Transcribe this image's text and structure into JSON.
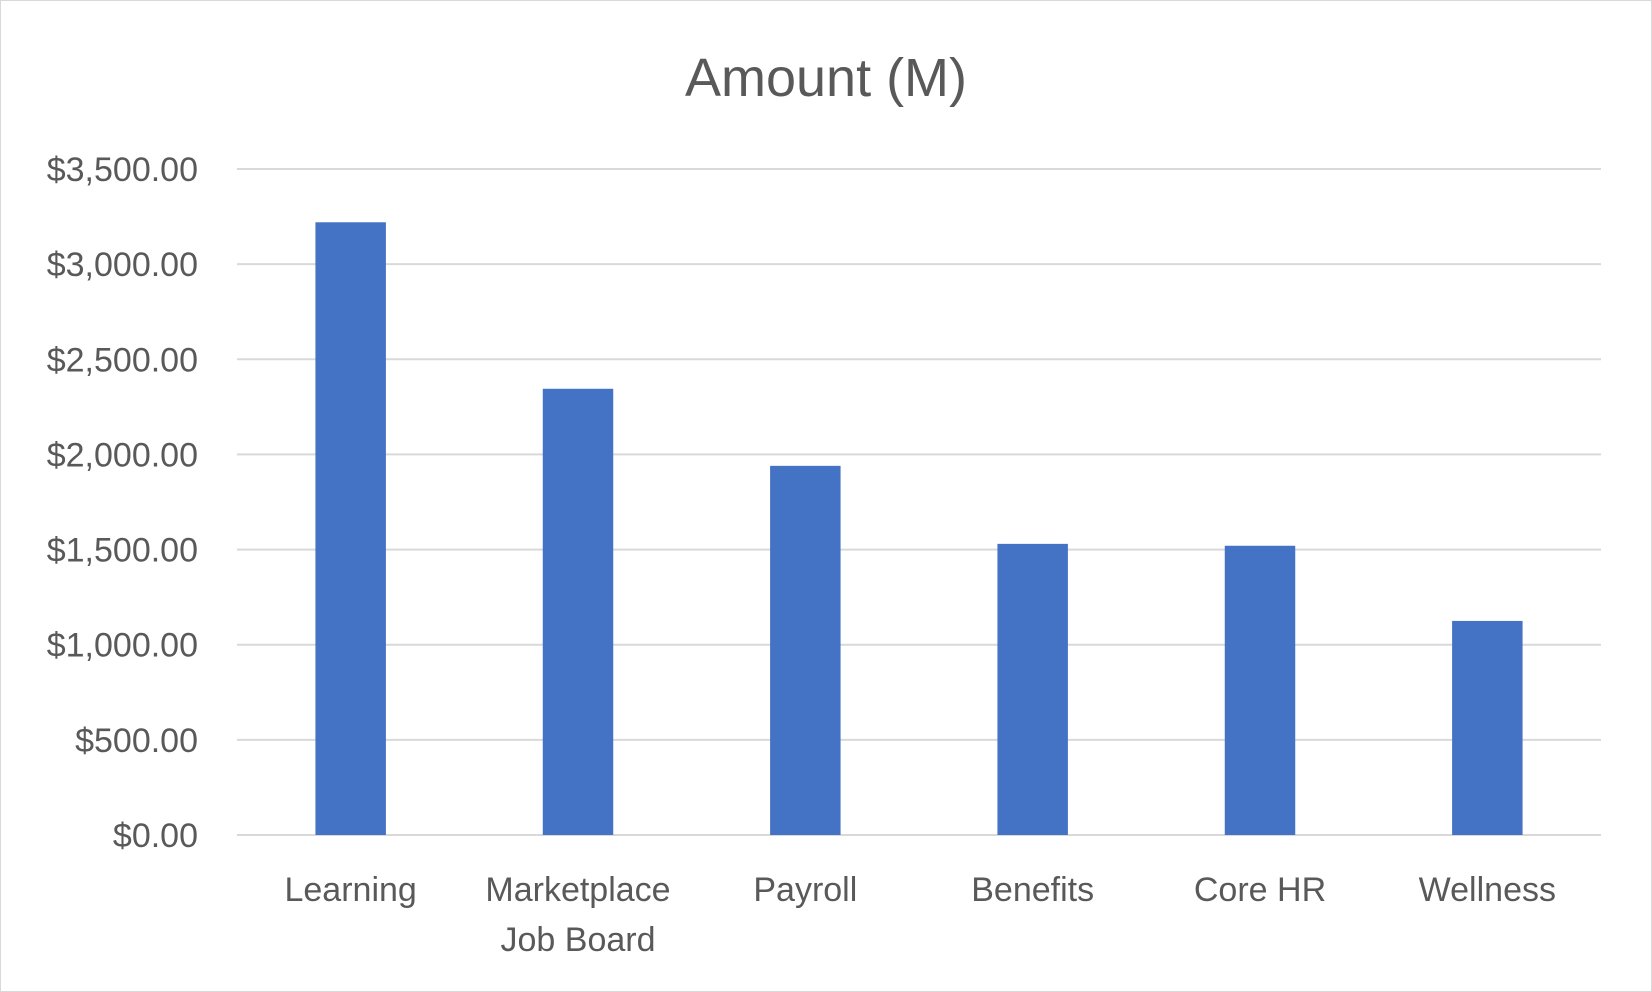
{
  "chart_data": {
    "type": "bar",
    "title": "Amount (M)",
    "xlabel": "",
    "ylabel": "",
    "categories": [
      [
        "Learning"
      ],
      [
        "Marketplace",
        "Job Board"
      ],
      [
        "Payroll"
      ],
      [
        "Benefits"
      ],
      [
        "Core HR"
      ],
      [
        "Wellness"
      ]
    ],
    "values": [
      3220,
      2345,
      1940,
      1530,
      1520,
      1125
    ],
    "ylim": [
      0,
      3500
    ],
    "yticks": [
      0,
      500,
      1000,
      1500,
      2000,
      2500,
      3000,
      3500
    ],
    "ytick_labels": [
      "$0.00",
      "$500.00",
      "$1,000.00",
      "$1,500.00",
      "$2,000.00",
      "$2,500.00",
      "$3,000.00",
      "$3,500.00"
    ],
    "grid": true,
    "legend": "none",
    "colors": {
      "bar": "#4472C4",
      "grid": "#D9D9D9",
      "text": "#595959"
    }
  }
}
